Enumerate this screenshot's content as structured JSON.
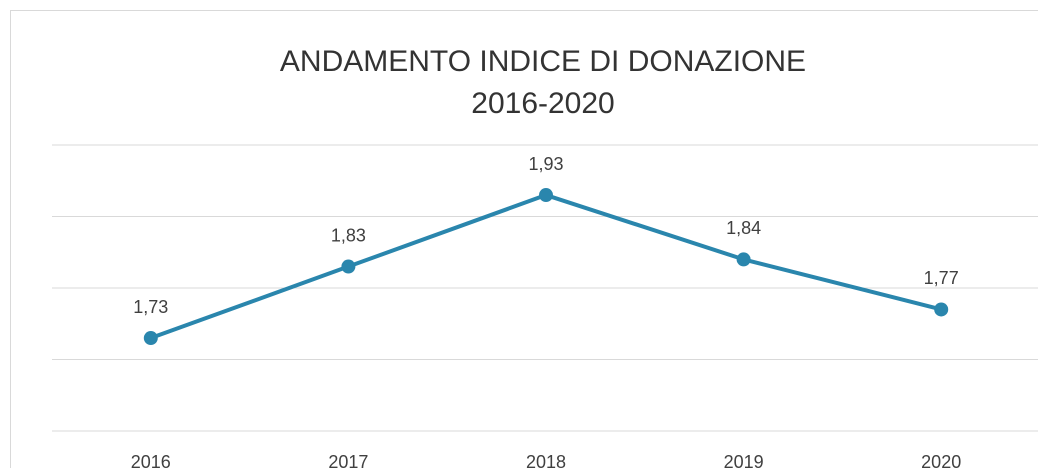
{
  "chart_data": {
    "type": "line",
    "title": [
      "ANDAMENTO INDICE DI DONAZIONE",
      "2016-2020"
    ],
    "categories": [
      "2016",
      "2017",
      "2018",
      "2019",
      "2020"
    ],
    "series": [
      {
        "color": "#2a86ad",
        "values": [
          1.73,
          1.83,
          1.93,
          1.84,
          1.77
        ],
        "value_labels": [
          "1,73",
          "1,83",
          "1,93",
          "1,84",
          "1,77"
        ]
      }
    ],
    "ylim": [
      1.6,
      2.0
    ],
    "yticks": [
      1.6,
      1.7,
      1.8,
      1.9,
      2.0
    ],
    "grid": true
  }
}
